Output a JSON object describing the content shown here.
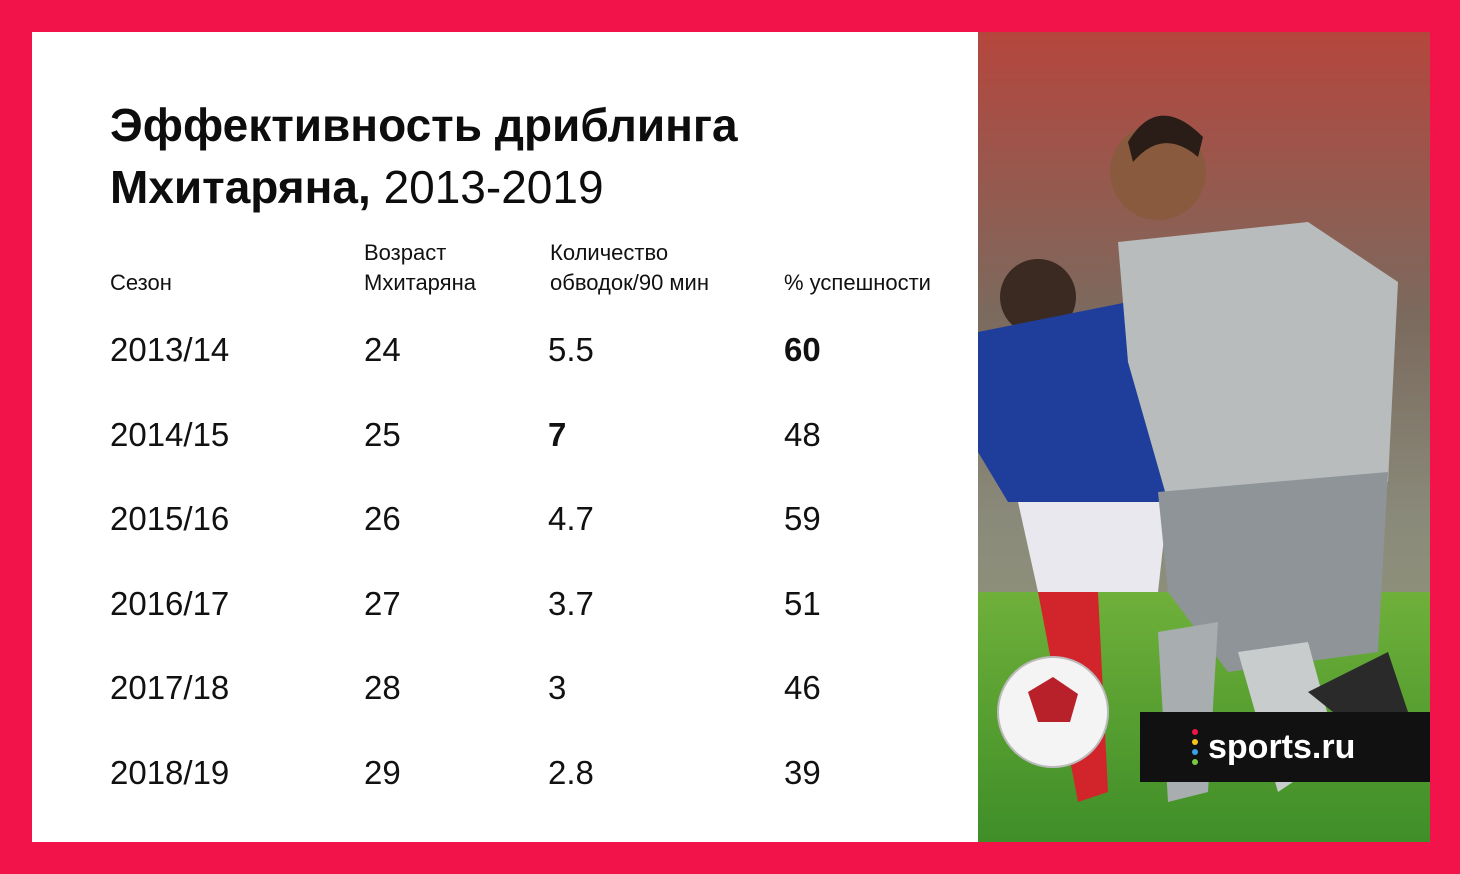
{
  "title": {
    "bold": "Эффективность дриблинга Мхитаряна,",
    "light": "2013-2019"
  },
  "table": {
    "headers": [
      {
        "line1": "",
        "line2": "Сезон"
      },
      {
        "line1": "Возраст",
        "line2": "Мхитаряна"
      },
      {
        "line1": "Количество",
        "line2": "обводок/90 мин"
      },
      {
        "line1": "",
        "line2": "% успешности"
      }
    ],
    "rows": [
      {
        "season": "2013/14",
        "age": "24",
        "dribbles": "5.5",
        "success": "60",
        "bold_col": "success"
      },
      {
        "season": "2014/15",
        "age": "25",
        "dribbles": "7",
        "success": "48",
        "bold_col": "dribbles"
      },
      {
        "season": "2015/16",
        "age": "26",
        "dribbles": "4.7",
        "success": "59",
        "bold_col": ""
      },
      {
        "season": "2016/17",
        "age": "27",
        "dribbles": "3.7",
        "success": "51",
        "bold_col": ""
      },
      {
        "season": "2017/18",
        "age": "28",
        "dribbles": "3",
        "success": "46",
        "bold_col": ""
      },
      {
        "season": "2018/19",
        "age": "29",
        "dribbles": "2.8",
        "success": "39",
        "bold_col": ""
      }
    ]
  },
  "brand": {
    "label": "sports.ru"
  },
  "colors": {
    "frame": "#f2134a",
    "panel": "#ffffff",
    "brand_bg": "#111111"
  }
}
